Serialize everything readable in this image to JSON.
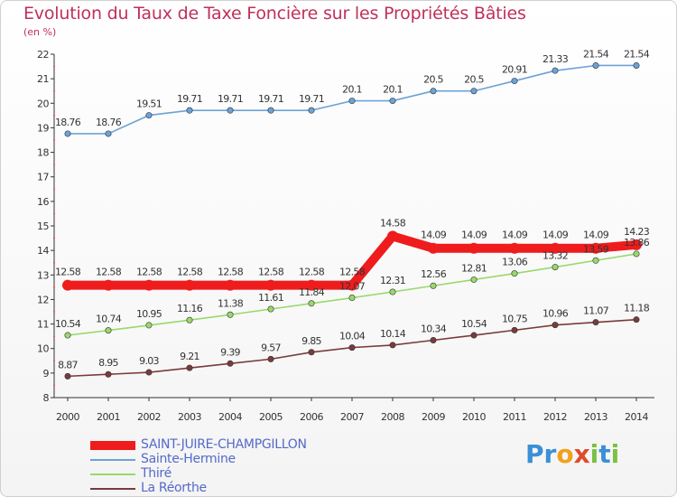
{
  "title": "Evolution du Taux de Taxe Foncière sur les Propriétés Bâties",
  "unit": "(en %)",
  "logo_text": "Proxiti",
  "colors": {
    "title": "#c0305a",
    "legend_text": "#5569c9",
    "axis": "#333333"
  },
  "chart_data": {
    "type": "line",
    "x": [
      "2000",
      "2001",
      "2002",
      "2003",
      "2004",
      "2005",
      "2006",
      "2007",
      "2008",
      "2009",
      "2010",
      "2011",
      "2012",
      "2013",
      "2014"
    ],
    "ylim": [
      8,
      22
    ],
    "yticks": [
      "8",
      "9",
      "10",
      "11",
      "12",
      "13",
      "14",
      "15",
      "16",
      "17",
      "18",
      "19",
      "20",
      "21",
      "22"
    ],
    "grid": false,
    "legend_position": "bottom-left",
    "series": [
      {
        "name": "SAINT-JUIRE-CHAMPGILLON",
        "color": "#ee1c1c",
        "values": [
          12.58,
          12.58,
          12.58,
          12.58,
          12.58,
          12.58,
          12.58,
          12.58,
          14.58,
          14.09,
          14.09,
          14.09,
          14.09,
          14.09,
          14.23
        ],
        "labels": [
          "12.58",
          "12.58",
          "12.58",
          "12.58",
          "12.58",
          "12.58",
          "12.58",
          "12.58",
          "14.58",
          "14.09",
          "14.09",
          "14.09",
          "14.09",
          "14.09",
          "14.23"
        ]
      },
      {
        "name": "Sainte-Hermine",
        "color": "#6ba3d6",
        "values": [
          18.76,
          18.76,
          19.51,
          19.71,
          19.71,
          19.71,
          19.71,
          20.1,
          20.1,
          20.5,
          20.5,
          20.91,
          21.33,
          21.54,
          21.54
        ],
        "labels": [
          "18.76",
          "18.76",
          "19.51",
          "19.71",
          "19.71",
          "19.71",
          "19.71",
          "20.1",
          "20.1",
          "20.5",
          "20.5",
          "20.91",
          "21.33",
          "21.54",
          "21.54"
        ]
      },
      {
        "name": "Thiré",
        "color": "#99d96b",
        "values": [
          10.54,
          10.74,
          10.95,
          11.16,
          11.38,
          11.61,
          11.84,
          12.07,
          12.31,
          12.56,
          12.81,
          13.06,
          13.32,
          13.59,
          13.86
        ],
        "labels": [
          "10.54",
          "10.74",
          "10.95",
          "11.16",
          "11.38",
          "11.61",
          "11.84",
          "12.07",
          "12.31",
          "12.56",
          "12.81",
          "13.06",
          "13.32",
          "13.59",
          "13.86"
        ]
      },
      {
        "name": "La Réorthe",
        "color": "#7a3b3b",
        "values": [
          8.87,
          8.95,
          9.03,
          9.21,
          9.39,
          9.57,
          9.85,
          10.04,
          10.14,
          10.34,
          10.54,
          10.75,
          10.96,
          11.07,
          11.18
        ],
        "labels": [
          "8.87",
          "8.95",
          "9.03",
          "9.21",
          "9.39",
          "9.57",
          "9.85",
          "10.04",
          "10.14",
          "10.34",
          "10.54",
          "10.75",
          "10.96",
          "11.07",
          "11.18"
        ]
      }
    ]
  }
}
